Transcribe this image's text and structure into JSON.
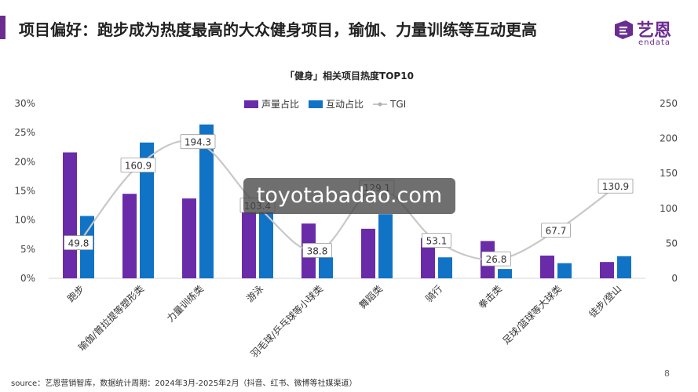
{
  "header": {
    "title": "项目偏好：跑步成为热度最高的大众健身项目，瑜伽、力量训练等互动更高",
    "brand_cn": "艺恩",
    "brand_en": "endata",
    "accent": "#6b2c91"
  },
  "footer": {
    "source": "source：艺恩营销智库，数据统计周期：2024年3月-2025年2月（抖音、红书、微博等社媒渠道）",
    "page": "8"
  },
  "watermark": "toyotabadao.com",
  "chart_data": {
    "type": "bar",
    "title": "「健身」相关项目热度TOP10",
    "categories": [
      "跑步",
      "瑜伽/普拉提等塑形类",
      "力量训练类",
      "游泳",
      "羽毛球/乒乓球等小球类",
      "舞蹈类",
      "骑行",
      "拳击类",
      "足球/篮球等大球类",
      "徒步/登山"
    ],
    "series": [
      {
        "name": "声量占比",
        "type": "bar",
        "axis": "left",
        "color": "#6a2ba8",
        "values": [
          21.6,
          14.5,
          13.7,
          12.0,
          9.4,
          8.5,
          6.9,
          6.4,
          3.9,
          2.8
        ]
      },
      {
        "name": "互动占比",
        "type": "bar",
        "axis": "left",
        "color": "#1173c6",
        "values": [
          10.7,
          23.3,
          26.4,
          11.9,
          3.6,
          11.0,
          3.6,
          1.6,
          2.6,
          3.8
        ]
      },
      {
        "name": "TGI",
        "type": "line",
        "axis": "right",
        "color": "#c8c8c8",
        "values": [
          49.8,
          160.9,
          194.3,
          103.4,
          38.8,
          129.1,
          53.1,
          26.8,
          67.7,
          130.9
        ],
        "labels": [
          "49.8",
          "160.9",
          "194.3",
          "103.4",
          "38.8",
          "129.1",
          "53.1",
          "26.8",
          "67.7",
          "130.9"
        ]
      }
    ],
    "y_left": {
      "min": 0,
      "max": 30,
      "ticks": [
        "0%",
        "5%",
        "10%",
        "15%",
        "20%",
        "25%",
        "30%"
      ]
    },
    "y_right": {
      "min": 0,
      "max": 250,
      "ticks": [
        "0",
        "50",
        "100",
        "150",
        "200",
        "250"
      ]
    },
    "grid": false,
    "legend_position": "top-center"
  }
}
